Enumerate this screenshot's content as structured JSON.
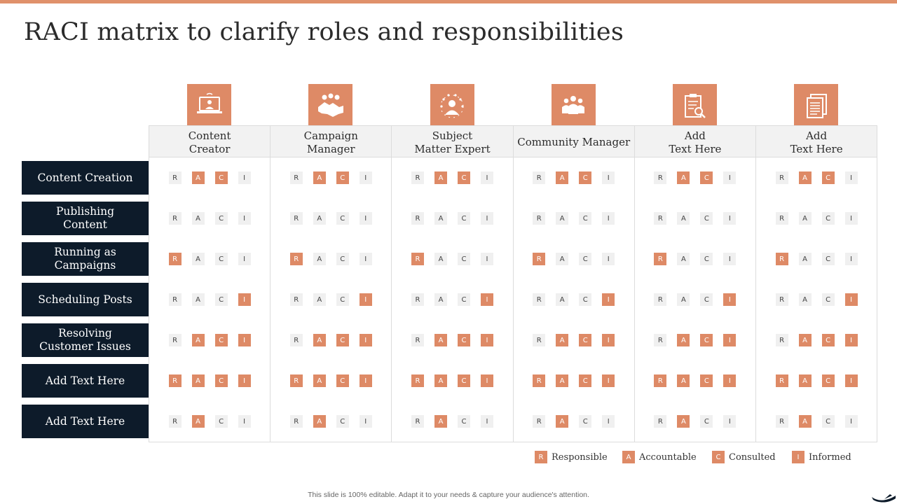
{
  "title": "RACI matrix to clarify roles and responsibilities",
  "roles": [
    {
      "label_lines": [
        "Content",
        "Creator"
      ],
      "icon": "laptop-presenter-icon"
    },
    {
      "label_lines": [
        "Campaign",
        "Manager"
      ],
      "icon": "handshake-icon"
    },
    {
      "label_lines": [
        "Subject",
        "Matter Expert"
      ],
      "icon": "star-person-icon"
    },
    {
      "label_lines": [
        "Community Manager"
      ],
      "icon": "group-people-icon"
    },
    {
      "label_lines": [
        "Add",
        "Text Here"
      ],
      "icon": "clipboard-search-icon"
    },
    {
      "label_lines": [
        "Add",
        "Text Here"
      ],
      "icon": "documents-icon"
    }
  ],
  "letters": [
    "R",
    "A",
    "C",
    "I"
  ],
  "rows": [
    {
      "label_lines": [
        "Content Creation"
      ],
      "active": [
        "A",
        "C"
      ]
    },
    {
      "label_lines": [
        "Publishing",
        "Content"
      ],
      "active": []
    },
    {
      "label_lines": [
        "Running as",
        "Campaigns"
      ],
      "active": [
        "R"
      ]
    },
    {
      "label_lines": [
        "Scheduling Posts"
      ],
      "active": [
        "I"
      ]
    },
    {
      "label_lines": [
        "Resolving",
        "Customer Issues"
      ],
      "active": [
        "A",
        "C",
        "I"
      ]
    },
    {
      "label_lines": [
        "Add Text Here"
      ],
      "active": [
        "R",
        "A",
        "C",
        "I"
      ]
    },
    {
      "label_lines": [
        "Add Text Here"
      ],
      "active": [
        "A"
      ]
    }
  ],
  "legend": [
    {
      "letter": "R",
      "label": "Responsible"
    },
    {
      "letter": "A",
      "label": "Accountable"
    },
    {
      "letter": "C",
      "label": "Consulted"
    },
    {
      "letter": "I",
      "label": "Informed"
    }
  ],
  "footer": "This slide is 100% editable.  Adapt it to your needs & capture your audience's attention.",
  "colors": {
    "accent": "#de8a66",
    "dark": "#0d1b2a",
    "badge_off": "#f0f0f0"
  }
}
